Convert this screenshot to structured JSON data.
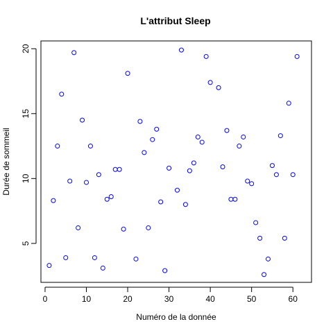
{
  "chart_data": {
    "type": "scatter",
    "title": "L'attribut Sleep",
    "xlabel": "Numéro de la donnée",
    "ylabel": "Durée de sommeil",
    "xlim": [
      -1,
      64.5
    ],
    "ylim": [
      2.0,
      20.6
    ],
    "x_ticks": [
      0,
      10,
      20,
      30,
      40,
      50,
      60
    ],
    "y_ticks": [
      5,
      10,
      15,
      20
    ],
    "grid": false,
    "marker": "open-circle",
    "point_color": "#0000ff",
    "x": [
      1,
      2,
      3,
      4,
      5,
      6,
      7,
      8,
      9,
      10,
      11,
      12,
      13,
      14,
      15,
      16,
      17,
      18,
      19,
      20,
      21,
      22,
      23,
      24,
      25,
      26,
      27,
      28,
      29,
      30,
      31,
      32,
      33,
      34,
      35,
      36,
      37,
      38,
      39,
      40,
      41,
      42,
      43,
      44,
      45,
      46,
      47,
      48,
      49,
      50,
      51,
      52,
      53,
      54,
      55,
      56,
      57,
      58,
      59,
      60,
      61
    ],
    "y": [
      3.3,
      8.3,
      12.5,
      16.5,
      3.9,
      9.8,
      19.7,
      6.2,
      14.5,
      9.7,
      12.5,
      3.9,
      10.3,
      3.1,
      8.4,
      8.6,
      10.7,
      10.7,
      6.1,
      18.1,
      null,
      3.8,
      14.4,
      12.0,
      6.2,
      13.0,
      13.8,
      8.2,
      2.9,
      10.8,
      null,
      9.1,
      19.9,
      8.0,
      10.6,
      11.2,
      13.2,
      12.8,
      19.4,
      17.4,
      null,
      17.0,
      10.9,
      13.7,
      8.4,
      8.4,
      12.5,
      13.2,
      9.8,
      9.6,
      6.6,
      5.4,
      2.6,
      3.8,
      11.0,
      10.3,
      13.3,
      5.4,
      15.8,
      10.3,
      19.4
    ]
  }
}
